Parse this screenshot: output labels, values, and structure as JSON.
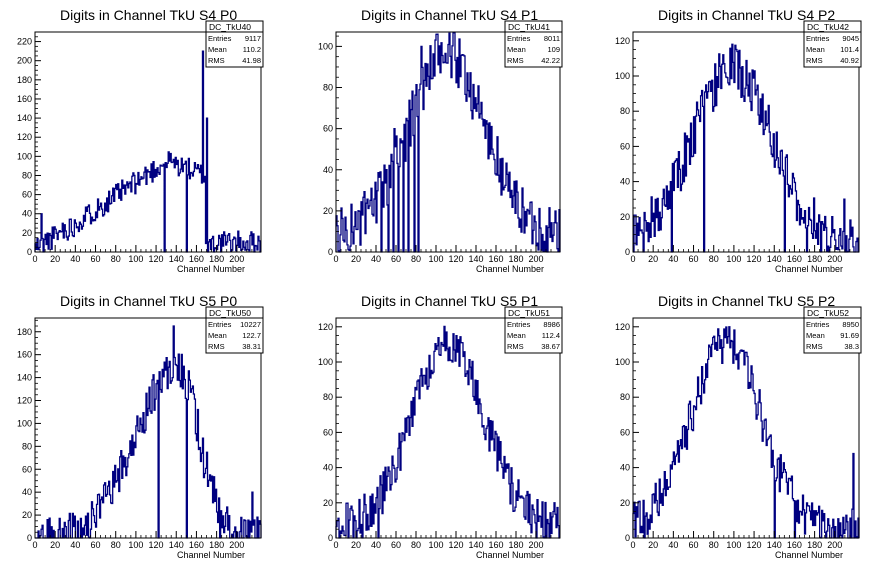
{
  "panels": [
    {
      "title": "Digits in Channel TkU S4 P0",
      "stats": {
        "name": "DC_TkU40",
        "entries_label": "Entries",
        "entries": "9117",
        "mean_label": "Mean",
        "mean": "110.2",
        "rms_label": "RMS",
        "rms": "41.98"
      },
      "xlabel": "Channel Number",
      "xticks": [
        0,
        20,
        40,
        60,
        80,
        100,
        120,
        140,
        160,
        180,
        200
      ],
      "yticks": [
        0,
        20,
        40,
        60,
        80,
        100,
        120,
        140,
        160,
        180,
        200,
        220
      ],
      "ylim": [
        0,
        230
      ],
      "shape": {
        "type": "ramp",
        "base": 5,
        "peakAt": 130,
        "peakVal": 95,
        "noise": 12,
        "drop": 168,
        "after": 10,
        "seed": 11
      },
      "spikes": [
        [
          128,
          0
        ],
        [
          150,
          0
        ],
        [
          166,
          210
        ],
        [
          170,
          140
        ],
        [
          171,
          0
        ],
        [
          133,
          95
        ],
        [
          27,
          30
        ],
        [
          6,
          40
        ]
      ]
    },
    {
      "title": "Digits in Channel TkU S4 P1",
      "stats": {
        "name": "DC_TkU41",
        "entries_label": "Entries",
        "entries": "8011",
        "mean_label": "Mean",
        "mean": "109",
        "rms_label": "RMS",
        "rms": "42.22"
      },
      "xlabel": "Channel Number",
      "xticks": [
        0,
        20,
        40,
        60,
        80,
        100,
        120,
        140,
        160,
        180,
        200
      ],
      "yticks": [
        0,
        20,
        40,
        60,
        80,
        100
      ],
      "ylim": [
        0,
        107
      ],
      "shape": {
        "type": "gauss",
        "center": 110,
        "sigma": 38,
        "peakVal": 88,
        "noise": 13,
        "base": 8,
        "seed": 23
      },
      "spikes": [
        [
          85,
          100
        ],
        [
          52,
          0
        ],
        [
          57,
          0
        ],
        [
          62,
          0
        ],
        [
          67,
          0
        ],
        [
          72,
          0
        ],
        [
          78,
          0
        ],
        [
          82,
          0
        ],
        [
          45,
          0
        ],
        [
          58,
          60
        ],
        [
          64,
          55
        ],
        [
          70,
          65
        ]
      ]
    },
    {
      "title": "Digits in Channel TkU S4 P2",
      "stats": {
        "name": "DC_TkU42",
        "entries_label": "Entries",
        "entries": "9045",
        "mean_label": "Mean",
        "mean": "101.4",
        "rms_label": "RMS",
        "rms": "40.92"
      },
      "xlabel": "Channel Number",
      "xticks": [
        0,
        20,
        40,
        60,
        80,
        100,
        120,
        140,
        160,
        180,
        200
      ],
      "yticks": [
        0,
        20,
        40,
        60,
        80,
        100,
        120
      ],
      "ylim": [
        0,
        125
      ],
      "shape": {
        "type": "gauss",
        "center": 98,
        "sigma": 40,
        "peakVal": 100,
        "noise": 14,
        "base": 4,
        "seed": 37
      },
      "spikes": [
        [
          98,
          118
        ],
        [
          70,
          0
        ],
        [
          38,
          0
        ],
        [
          172,
          0
        ],
        [
          186,
          0
        ],
        [
          150,
          0
        ],
        [
          209,
          30
        ],
        [
          220,
          0
        ]
      ]
    },
    {
      "title": "Digits in Channel TkU S5 P0",
      "stats": {
        "name": "DC_TkU50",
        "entries_label": "Entries",
        "entries": "10227",
        "mean_label": "Mean",
        "mean": "122.7",
        "rms_label": "RMS",
        "rms": "38.31"
      },
      "xlabel": "Channel Number",
      "xticks": [
        0,
        20,
        40,
        60,
        80,
        100,
        120,
        140,
        160,
        180,
        200
      ],
      "yticks": [
        0,
        20,
        40,
        60,
        80,
        100,
        120,
        140,
        160,
        180
      ],
      "ylim": [
        0,
        192
      ],
      "shape": {
        "type": "skew",
        "center": 140,
        "sigmaL": 40,
        "sigmaR": 22,
        "peakVal": 150,
        "noise": 18,
        "base": 0,
        "seed": 53
      },
      "spikes": [
        [
          137,
          185
        ],
        [
          122,
          0
        ],
        [
          183,
          0
        ],
        [
          196,
          0
        ],
        [
          150,
          0
        ],
        [
          215,
          40
        ]
      ]
    },
    {
      "title": "Digits in Channel TkU S5 P1",
      "stats": {
        "name": "DC_TkU51",
        "entries_label": "Entries",
        "entries": "8986",
        "mean_label": "Mean",
        "mean": "112.4",
        "rms_label": "RMS",
        "rms": "38.67"
      },
      "xlabel": "Channel Number",
      "xticks": [
        0,
        20,
        40,
        60,
        80,
        100,
        120,
        140,
        160,
        180,
        200
      ],
      "yticks": [
        0,
        20,
        40,
        60,
        80,
        100,
        120
      ],
      "ylim": [
        0,
        125
      ],
      "shape": {
        "type": "gauss",
        "center": 112,
        "sigma": 36,
        "peakVal": 105,
        "noise": 12,
        "base": 6,
        "seed": 71
      },
      "spikes": [
        [
          110,
          117
        ],
        [
          120,
          115
        ],
        [
          26,
          0
        ],
        [
          200,
          0
        ],
        [
          42,
          0
        ],
        [
          210,
          0
        ],
        [
          218,
          20
        ]
      ]
    },
    {
      "title": "Digits in Channel TkU S5 P2",
      "stats": {
        "name": "DC_TkU52",
        "entries_label": "Entries",
        "entries": "8950",
        "mean_label": "Mean",
        "mean": "91.69",
        "rms_label": "RMS",
        "rms": "38.3"
      },
      "xlabel": "Channel Number",
      "xticks": [
        0,
        20,
        40,
        60,
        80,
        100,
        120,
        140,
        160,
        180,
        200
      ],
      "yticks": [
        0,
        20,
        40,
        60,
        80,
        100,
        120
      ],
      "ylim": [
        0,
        125
      ],
      "shape": {
        "type": "gauss",
        "center": 92,
        "sigma": 35,
        "peakVal": 105,
        "noise": 12,
        "base": 5,
        "seed": 89
      },
      "spikes": [
        [
          95,
          120
        ],
        [
          140,
          0
        ],
        [
          160,
          0
        ],
        [
          11,
          0
        ],
        [
          218,
          48
        ],
        [
          222,
          0
        ]
      ]
    }
  ],
  "colors": {
    "line": "#000080",
    "axis": "#000000",
    "background": "#ffffff"
  }
}
